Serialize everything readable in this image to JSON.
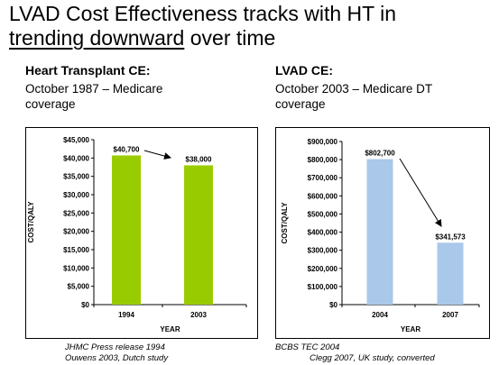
{
  "slide": {
    "title_line1": "LVAD Cost Effectiveness tracks with HT in",
    "title_line2_underlined": "trending downward",
    "title_line2_rest": " over time"
  },
  "left": {
    "heading": "Heart Transplant CE:",
    "text_line1": "October 1987 – Medicare",
    "text_line2": "coverage",
    "source_line1": "JHMC Press release 1994",
    "source_line2": "Ouwens 2003, Dutch study"
  },
  "right": {
    "heading": "LVAD CE:",
    "text_line1": "October 2003 – Medicare DT",
    "text_line2": "coverage",
    "source_line1": "BCBS TEC 2004",
    "source_line2": "Clegg 2007, UK study, converted"
  },
  "chart_data": [
    {
      "id": "ht",
      "type": "bar",
      "categories": [
        "1994",
        "2003"
      ],
      "values": [
        40700,
        38000
      ],
      "data_labels": [
        "$40,700",
        "$38,000"
      ],
      "xlabel": "YEAR",
      "ylabel": "COST/QALY",
      "ylim": [
        0,
        45000
      ],
      "yticks": [
        "$0",
        "$5,000",
        "$10,000",
        "$15,000",
        "$20,000",
        "$25,000",
        "$30,000",
        "$35,000",
        "$40,000",
        "$45,000"
      ],
      "color": "#99cc00",
      "arrow": "from first bar label to second bar label",
      "grid": false
    },
    {
      "id": "lvad",
      "type": "bar",
      "categories": [
        "2004",
        "2007"
      ],
      "values": [
        802700,
        341573
      ],
      "data_labels": [
        "$802,700",
        "$341,573"
      ],
      "xlabel": "YEAR",
      "ylabel": "COST/QALY",
      "ylim": [
        0,
        900000
      ],
      "yticks": [
        "$0",
        "$100,000",
        "$200,000",
        "$300,000",
        "$400,000",
        "$500,000",
        "$600,000",
        "$700,000",
        "$800,000",
        "$900,000"
      ],
      "color": "#a9c8ea",
      "arrow": "from first bar label to second bar label",
      "grid": false
    }
  ]
}
